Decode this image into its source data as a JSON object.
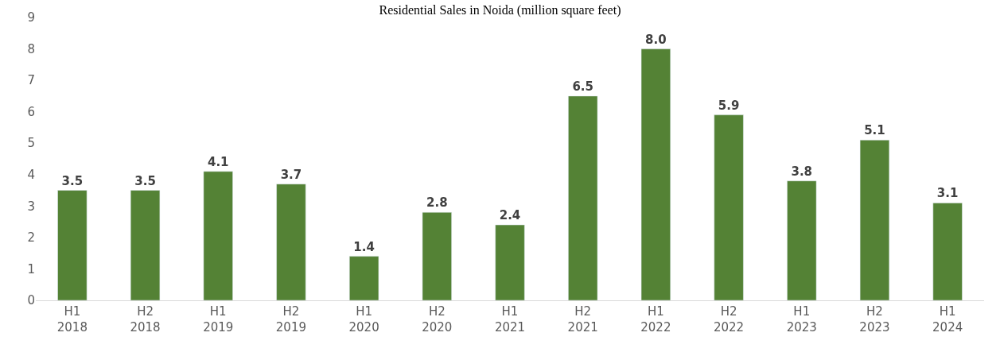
{
  "chart_data": {
    "type": "bar",
    "title": "Residential Sales in Noida (million square feet)",
    "categories": [
      "H1\n2018",
      "H2\n2018",
      "H1\n2019",
      "H2\n2019",
      "H1\n2020",
      "H2\n2020",
      "H1\n2021",
      "H2\n2021",
      "H1\n2022",
      "H2\n2022",
      "H1\n2023",
      "H2\n2023",
      "H1\n2024"
    ],
    "values": [
      3.5,
      3.5,
      4.1,
      3.7,
      1.4,
      2.8,
      2.4,
      6.5,
      8.0,
      5.9,
      3.8,
      5.1,
      3.1
    ],
    "value_labels": [
      "3.5",
      "3.5",
      "4.1",
      "3.7",
      "1.4",
      "2.8",
      "2.4",
      "6.5",
      "8.0",
      "5.9",
      "3.8",
      "5.1",
      "3.1"
    ],
    "color": "#548235",
    "ylim": [
      0,
      9
    ],
    "yticks": [
      0,
      1,
      2,
      3,
      4,
      5,
      6,
      7,
      8,
      9
    ],
    "grid": false,
    "legend": false
  }
}
